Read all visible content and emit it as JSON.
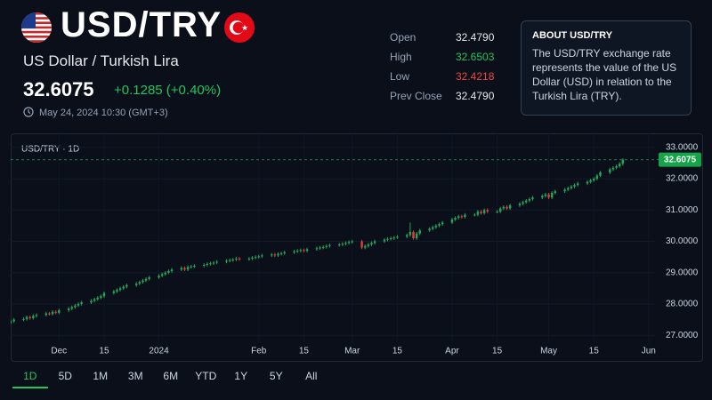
{
  "header": {
    "symbol": "USD/TRY",
    "name": "US Dollar / Turkish Lira",
    "price": "32.6075",
    "change": "+0.1285 (+0.40%)",
    "timestamp": "May 24, 2024 10:30 (GMT+3)"
  },
  "stats": [
    {
      "label": "Open",
      "value": "32.4790"
    },
    {
      "label": "High",
      "value": "32.6503"
    },
    {
      "label": "Low",
      "value": "32.4218"
    },
    {
      "label": "Prev Close",
      "value": "32.4790"
    }
  ],
  "about": {
    "title": "ABOUT USD/TRY",
    "text": "The USD/TRY exchange rate represents the value of the US Dollar (USD) in relation to the Turkish Lira (TRY)."
  },
  "chart_data": {
    "type": "candlestick",
    "title": "USD/TRY · 1D",
    "x": [
      0,
      1,
      4,
      5,
      6,
      7,
      8,
      11,
      12,
      13,
      14,
      15,
      18,
      19,
      20,
      21,
      22,
      25,
      26,
      27,
      28,
      29,
      32,
      33,
      34,
      35,
      36,
      39,
      40,
      41,
      42,
      43,
      46,
      47,
      48,
      49,
      50,
      53,
      54,
      55,
      56,
      57,
      60,
      61,
      62,
      63,
      64,
      67,
      68,
      69,
      70,
      71,
      74,
      75,
      76,
      77,
      78,
      81,
      82,
      83,
      84,
      85,
      88,
      89,
      90,
      91,
      92,
      95,
      96,
      97,
      98,
      99,
      102,
      103,
      104,
      105,
      106,
      109,
      110,
      111,
      112,
      113,
      116,
      117,
      118,
      119,
      120,
      123,
      124,
      125,
      126,
      127,
      130,
      131,
      132,
      133,
      134,
      137,
      138,
      139,
      140,
      141,
      144,
      145,
      146,
      147,
      148,
      151,
      152,
      153,
      154,
      155,
      158,
      159,
      160,
      161,
      162,
      165,
      166,
      167,
      168,
      169,
      172,
      173,
      174,
      175,
      176,
      179,
      180,
      181,
      182,
      183,
      186,
      187,
      188,
      189,
      190
    ],
    "open": [
      27.4,
      27.45,
      27.5,
      27.52,
      27.58,
      27.55,
      27.62,
      27.65,
      27.7,
      27.68,
      27.75,
      27.72,
      27.8,
      27.85,
      27.9,
      27.95,
      28.0,
      28.05,
      28.1,
      28.15,
      28.2,
      28.25,
      28.35,
      28.4,
      28.45,
      28.5,
      28.55,
      28.6,
      28.65,
      28.7,
      28.75,
      28.8,
      28.85,
      28.9,
      28.95,
      29.0,
      29.05,
      29.1,
      29.15,
      29.1,
      29.18,
      29.2,
      29.22,
      29.25,
      29.28,
      29.3,
      29.32,
      29.35,
      29.38,
      29.4,
      29.42,
      29.45,
      29.43,
      29.45,
      29.48,
      29.5,
      29.52,
      29.55,
      29.58,
      29.55,
      29.6,
      29.62,
      29.65,
      29.68,
      29.7,
      29.72,
      29.7,
      29.75,
      29.78,
      29.8,
      29.82,
      29.85,
      29.88,
      29.9,
      29.92,
      29.95,
      29.98,
      30.0,
      29.8,
      29.85,
      29.9,
      29.95,
      30.0,
      30.05,
      30.08,
      30.1,
      30.12,
      30.15,
      30.2,
      30.3,
      30.1,
      30.25,
      30.35,
      30.4,
      30.45,
      30.5,
      30.55,
      30.6,
      30.7,
      30.75,
      30.8,
      30.78,
      30.85,
      30.85,
      30.95,
      30.9,
      31.0,
      30.95,
      30.95,
      31.05,
      31.1,
      31.05,
      31.15,
      31.2,
      31.25,
      31.3,
      31.35,
      31.4,
      31.45,
      31.5,
      31.4,
      31.55,
      31.6,
      31.65,
      31.7,
      31.75,
      31.8,
      31.85,
      31.9,
      31.95,
      32.0,
      32.1,
      32.2,
      32.3,
      32.35,
      32.4,
      32.479
    ],
    "high": [
      27.5,
      27.55,
      27.57,
      27.63,
      27.63,
      27.67,
      27.7,
      27.75,
      27.75,
      27.8,
      27.8,
      27.85,
      27.9,
      27.95,
      28.0,
      28.05,
      28.1,
      28.15,
      28.2,
      28.25,
      28.3,
      28.4,
      28.45,
      28.5,
      28.55,
      28.6,
      28.65,
      28.7,
      28.75,
      28.8,
      28.85,
      28.9,
      28.95,
      29.0,
      29.05,
      29.1,
      29.15,
      29.2,
      29.2,
      29.23,
      29.25,
      29.27,
      29.3,
      29.33,
      29.35,
      29.37,
      29.4,
      29.43,
      29.45,
      29.47,
      29.5,
      29.5,
      29.5,
      29.53,
      29.55,
      29.57,
      29.6,
      29.63,
      29.63,
      29.65,
      29.67,
      29.7,
      29.73,
      29.75,
      29.77,
      29.77,
      29.8,
      29.83,
      29.85,
      29.87,
      29.9,
      29.93,
      29.95,
      29.97,
      30.0,
      30.03,
      30.05,
      30.05,
      29.9,
      29.95,
      30.0,
      30.05,
      30.1,
      30.13,
      30.15,
      30.17,
      30.2,
      30.25,
      30.6,
      30.35,
      30.3,
      30.4,
      30.45,
      30.5,
      30.55,
      30.6,
      30.65,
      30.75,
      30.8,
      30.85,
      30.85,
      30.9,
      30.9,
      31.0,
      31.0,
      31.05,
      31.05,
      31.0,
      31.1,
      31.15,
      31.15,
      31.2,
      31.25,
      31.3,
      31.35,
      31.4,
      31.45,
      31.5,
      31.55,
      31.55,
      31.6,
      31.65,
      31.7,
      31.75,
      31.8,
      31.85,
      31.9,
      31.95,
      32.0,
      32.05,
      32.15,
      32.25,
      32.35,
      32.4,
      32.45,
      32.53,
      32.6503
    ],
    "low": [
      27.35,
      27.4,
      27.45,
      27.47,
      27.5,
      27.5,
      27.57,
      27.6,
      27.63,
      27.63,
      27.67,
      27.67,
      27.75,
      27.8,
      27.85,
      27.9,
      27.95,
      28.0,
      28.05,
      28.1,
      28.15,
      28.2,
      28.3,
      28.35,
      28.4,
      28.45,
      28.5,
      28.55,
      28.6,
      28.65,
      28.7,
      28.75,
      28.8,
      28.85,
      28.9,
      28.95,
      29.0,
      29.05,
      29.05,
      29.05,
      29.13,
      29.15,
      29.17,
      29.2,
      29.23,
      29.25,
      29.27,
      29.3,
      29.33,
      29.35,
      29.37,
      29.38,
      29.38,
      29.4,
      29.43,
      29.45,
      29.47,
      29.5,
      29.5,
      29.5,
      29.55,
      29.57,
      29.6,
      29.63,
      29.65,
      29.65,
      29.65,
      29.7,
      29.73,
      29.75,
      29.77,
      29.8,
      29.83,
      29.85,
      29.87,
      29.9,
      29.93,
      29.75,
      29.75,
      29.8,
      29.85,
      29.9,
      29.95,
      30.0,
      30.03,
      30.05,
      30.07,
      30.1,
      30.15,
      30.05,
      30.05,
      30.2,
      30.3,
      30.35,
      30.4,
      30.45,
      30.5,
      30.55,
      30.65,
      30.7,
      30.73,
      30.73,
      30.8,
      30.8,
      30.85,
      30.85,
      30.9,
      30.9,
      30.9,
      31.0,
      31.0,
      31.0,
      31.1,
      31.15,
      31.2,
      31.25,
      31.3,
      31.35,
      31.4,
      31.35,
      31.35,
      31.5,
      31.55,
      31.6,
      31.65,
      31.7,
      31.75,
      31.8,
      31.85,
      31.9,
      31.95,
      32.05,
      32.15,
      32.25,
      32.3,
      32.35,
      32.4218
    ],
    "close": [
      27.45,
      27.5,
      27.52,
      27.58,
      27.55,
      27.62,
      27.65,
      27.7,
      27.68,
      27.75,
      27.72,
      27.8,
      27.85,
      27.9,
      27.95,
      28.0,
      28.05,
      28.1,
      28.15,
      28.2,
      28.25,
      28.35,
      28.4,
      28.45,
      28.5,
      28.55,
      28.6,
      28.65,
      28.7,
      28.75,
      28.8,
      28.85,
      28.9,
      28.95,
      29.0,
      29.05,
      29.1,
      29.15,
      29.1,
      29.18,
      29.2,
      29.22,
      29.25,
      29.28,
      29.3,
      29.32,
      29.35,
      29.38,
      29.4,
      29.42,
      29.45,
      29.43,
      29.45,
      29.48,
      29.5,
      29.52,
      29.55,
      29.58,
      29.55,
      29.6,
      29.62,
      29.65,
      29.68,
      29.7,
      29.72,
      29.7,
      29.75,
      29.78,
      29.8,
      29.82,
      29.85,
      29.88,
      29.9,
      29.92,
      29.95,
      29.98,
      30.0,
      29.8,
      29.85,
      29.9,
      29.95,
      30.0,
      30.05,
      30.08,
      30.1,
      30.12,
      30.15,
      30.2,
      30.3,
      30.1,
      30.25,
      30.35,
      30.4,
      30.45,
      30.5,
      30.55,
      30.6,
      30.7,
      30.75,
      30.8,
      30.78,
      30.85,
      30.85,
      30.95,
      30.9,
      31.0,
      30.95,
      30.95,
      31.05,
      31.1,
      31.05,
      31.15,
      31.2,
      31.25,
      31.3,
      31.35,
      31.4,
      31.45,
      31.5,
      31.4,
      31.55,
      31.6,
      31.65,
      31.7,
      31.75,
      31.8,
      31.85,
      31.9,
      31.95,
      32.0,
      32.1,
      32.2,
      32.3,
      32.35,
      32.4,
      32.479,
      32.6075
    ],
    "up_color": "#22a75a",
    "down_color": "#e23b3b",
    "xlim": [
      0,
      200
    ],
    "xticks": [
      {
        "value": 15,
        "label": "Dec"
      },
      {
        "value": 29,
        "label": "15"
      },
      {
        "value": 46,
        "label": "2024"
      },
      {
        "value": 77,
        "label": "Feb"
      },
      {
        "value": 91,
        "label": "15"
      },
      {
        "value": 106,
        "label": "Mar"
      },
      {
        "value": 120,
        "label": "15"
      },
      {
        "value": 137,
        "label": "Apr"
      },
      {
        "value": 151,
        "label": "15"
      },
      {
        "value": 167,
        "label": "May"
      },
      {
        "value": 181,
        "label": "15"
      },
      {
        "value": 198,
        "label": "Jun"
      }
    ],
    "ylim": [
      26.75,
      33.45
    ],
    "yticks": [
      {
        "value": 27,
        "label": "27.0000"
      },
      {
        "value": 28,
        "label": "28.0000"
      },
      {
        "value": 29,
        "label": "29.0000"
      },
      {
        "value": 30,
        "label": "30.0000"
      },
      {
        "value": 31,
        "label": "31.0000"
      },
      {
        "value": 32,
        "label": "32.0000"
      },
      {
        "value": 33,
        "label": "33.0000"
      }
    ],
    "grid": true,
    "last_price": 32.6075
  },
  "timeframes": [
    "1D",
    "5D",
    "1M",
    "3M",
    "6M",
    "YTD",
    "1Y",
    "5Y",
    "All"
  ]
}
